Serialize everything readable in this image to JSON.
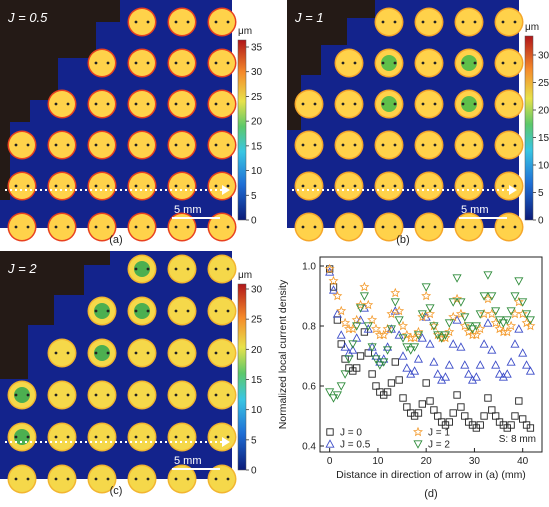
{
  "panels": [
    {
      "id": "a",
      "label": "J = 0.5",
      "caption": "(a)",
      "unit": "μm",
      "ticks": [
        "35",
        "30",
        "25",
        "20",
        "15",
        "10",
        "5",
        "0"
      ],
      "scalebar": "5 mm",
      "colors": {
        "bg": "#13238c",
        "mask": "#241a16",
        "dot": "#ffd24a",
        "edge": "#e8411f",
        "dotInner": "#ff8a2a"
      }
    },
    {
      "id": "b",
      "label": "J = 1",
      "caption": "(b)",
      "unit": "μm",
      "ticks": [
        "30",
        "25",
        "20",
        "15",
        "10",
        "5",
        "0"
      ],
      "scalebar": "5 mm",
      "colors": {
        "bg": "#13238c",
        "mask": "#241a16",
        "dot": "#ffd24a",
        "edge": "#f5a62a",
        "dotInner": "#5fbf4a"
      }
    },
    {
      "id": "c",
      "label": "J = 2",
      "caption": "(c)",
      "unit": "μm",
      "ticks": [
        "30",
        "25",
        "20",
        "15",
        "10",
        "5",
        "0"
      ],
      "scalebar": "5 mm",
      "colors": {
        "bg": "#13238c",
        "mask": "#241a16",
        "dot": "#f5d84a",
        "edge": "#f2b52f",
        "dotInner": "#4caf50"
      }
    }
  ],
  "chart_data": {
    "type": "scatter",
    "caption": "(d)",
    "xlabel": "Distance in direction of arrow in (a) (mm)",
    "ylabel": "Normalized local current density",
    "xlim": [
      -2,
      44
    ],
    "ylim": [
      0.38,
      1.03
    ],
    "xticks": [
      0,
      10,
      20,
      30,
      40
    ],
    "yticks": [
      0.4,
      0.6,
      0.8,
      1.0
    ],
    "annotation": "S: 8 mm",
    "legend": {
      "placement": "bottom-left"
    },
    "series": [
      {
        "name": "J = 0",
        "marker": "square",
        "color": "#222222",
        "x": [
          0,
          0.8,
          1.6,
          2.4,
          3.2,
          4.0,
          4.8,
          5.6,
          6.4,
          7.2,
          8.0,
          8.8,
          9.6,
          10.4,
          11.2,
          12.0,
          12.8,
          13.6,
          14.4,
          15.2,
          16.0,
          16.8,
          17.6,
          18.4,
          19.2,
          20.0,
          20.8,
          21.6,
          22.4,
          23.2,
          24.0,
          24.8,
          25.6,
          26.4,
          27.2,
          28.0,
          28.8,
          29.6,
          30.4,
          31.2,
          32.0,
          32.8,
          33.6,
          34.4,
          35.2,
          36.0,
          36.8,
          37.6,
          38.4,
          39.2,
          40.0,
          40.8,
          41.6
        ],
        "y": [
          0.99,
          0.93,
          0.82,
          0.74,
          0.69,
          0.66,
          0.65,
          0.66,
          0.7,
          0.78,
          0.71,
          0.64,
          0.6,
          0.58,
          0.57,
          0.58,
          0.61,
          0.68,
          0.62,
          0.56,
          0.53,
          0.51,
          0.5,
          0.51,
          0.54,
          0.61,
          0.55,
          0.52,
          0.5,
          0.48,
          0.47,
          0.48,
          0.51,
          0.57,
          0.53,
          0.5,
          0.48,
          0.47,
          0.46,
          0.47,
          0.5,
          0.56,
          0.52,
          0.5,
          0.48,
          0.47,
          0.46,
          0.47,
          0.5,
          0.55,
          0.49,
          0.47,
          0.46
        ]
      },
      {
        "name": "J = 0.5",
        "marker": "triangle-up",
        "color": "#3b4bc8",
        "x": [
          0,
          0.8,
          1.6,
          2.4,
          3.2,
          4.0,
          4.8,
          5.6,
          6.4,
          7.2,
          8.0,
          8.8,
          9.6,
          10.4,
          11.2,
          12.0,
          12.8,
          13.6,
          14.4,
          15.2,
          16.0,
          16.8,
          17.6,
          18.4,
          19.2,
          20.0,
          20.8,
          21.6,
          22.4,
          23.2,
          24.0,
          24.8,
          25.6,
          26.4,
          27.2,
          28.0,
          28.8,
          29.6,
          30.4,
          31.2,
          32.0,
          32.8,
          33.6,
          34.4,
          35.2,
          36.0,
          36.8,
          37.6,
          38.4,
          39.2,
          40.0,
          40.8,
          41.6
        ],
        "y": [
          0.98,
          0.92,
          0.84,
          0.77,
          0.73,
          0.71,
          0.72,
          0.76,
          0.82,
          0.86,
          0.79,
          0.73,
          0.7,
          0.68,
          0.69,
          0.73,
          0.79,
          0.85,
          0.77,
          0.7,
          0.66,
          0.64,
          0.65,
          0.69,
          0.76,
          0.83,
          0.74,
          0.68,
          0.64,
          0.62,
          0.63,
          0.67,
          0.74,
          0.82,
          0.73,
          0.67,
          0.64,
          0.62,
          0.63,
          0.67,
          0.74,
          0.81,
          0.72,
          0.67,
          0.64,
          0.63,
          0.64,
          0.68,
          0.74,
          0.79,
          0.71,
          0.67,
          0.65
        ]
      },
      {
        "name": "J = 1",
        "marker": "star",
        "color": "#f39a2c",
        "x": [
          0,
          0.8,
          1.6,
          2.4,
          3.2,
          4.0,
          4.8,
          5.6,
          6.4,
          7.2,
          8.0,
          8.8,
          9.6,
          10.4,
          11.2,
          12.0,
          12.8,
          13.6,
          14.4,
          15.2,
          16.0,
          16.8,
          17.6,
          18.4,
          19.2,
          20.0,
          20.8,
          21.6,
          22.4,
          23.2,
          24.0,
          24.8,
          25.6,
          26.4,
          27.2,
          28.0,
          28.8,
          29.6,
          30.4,
          31.2,
          32.0,
          32.8,
          33.6,
          34.4,
          35.2,
          36.0,
          36.8,
          37.6,
          38.4,
          39.2,
          40.0,
          40.8,
          41.6
        ],
        "y": [
          0.99,
          0.95,
          0.9,
          0.85,
          0.81,
          0.79,
          0.79,
          0.82,
          0.87,
          0.93,
          0.87,
          0.82,
          0.79,
          0.77,
          0.77,
          0.79,
          0.84,
          0.91,
          0.85,
          0.8,
          0.77,
          0.76,
          0.76,
          0.78,
          0.83,
          0.9,
          0.84,
          0.8,
          0.77,
          0.76,
          0.76,
          0.78,
          0.83,
          0.89,
          0.84,
          0.8,
          0.78,
          0.77,
          0.77,
          0.79,
          0.84,
          0.89,
          0.84,
          0.81,
          0.79,
          0.78,
          0.78,
          0.8,
          0.84,
          0.88,
          0.84,
          0.81,
          0.8
        ]
      },
      {
        "name": "J = 2",
        "marker": "triangle-down",
        "color": "#2e8b3a",
        "x": [
          0,
          0.8,
          1.6,
          2.4,
          3.2,
          4.0,
          4.8,
          5.6,
          6.4,
          7.2,
          8.0,
          8.8,
          9.6,
          10.4,
          11.2,
          12.0,
          12.8,
          13.6,
          14.4,
          15.2,
          16.0,
          16.8,
          17.6,
          18.4,
          19.2,
          20.0,
          20.8,
          21.6,
          22.4,
          23.2,
          24.0,
          24.8,
          25.6,
          26.4,
          27.2,
          28.0,
          28.8,
          29.6,
          30.4,
          31.2,
          32.0,
          32.8,
          33.6,
          34.4,
          35.2,
          36.0,
          36.8,
          37.6,
          38.4,
          39.2,
          40.0,
          40.8,
          41.6
        ],
        "y": [
          0.58,
          0.56,
          0.57,
          0.6,
          0.64,
          0.69,
          0.74,
          0.8,
          0.86,
          0.9,
          0.8,
          0.73,
          0.69,
          0.67,
          0.68,
          0.72,
          0.79,
          0.88,
          0.82,
          0.76,
          0.73,
          0.72,
          0.73,
          0.77,
          0.84,
          0.93,
          0.86,
          0.8,
          0.77,
          0.76,
          0.77,
          0.81,
          0.88,
          0.96,
          0.88,
          0.83,
          0.8,
          0.79,
          0.8,
          0.84,
          0.9,
          0.97,
          0.9,
          0.85,
          0.82,
          0.81,
          0.82,
          0.85,
          0.9,
          0.95,
          0.88,
          0.84,
          0.82
        ]
      }
    ]
  }
}
